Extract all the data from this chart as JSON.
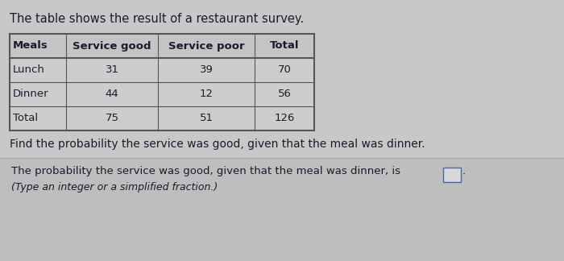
{
  "title": "The table shows the result of a restaurant survey.",
  "title_fontsize": 10.5,
  "col_headers": [
    "Meals",
    "Service good",
    "Service poor",
    "Total"
  ],
  "rows": [
    [
      "Lunch",
      "31",
      "39",
      "70"
    ],
    [
      "Dinner",
      "44",
      "12",
      "56"
    ],
    [
      "Total",
      "75",
      "51",
      "126"
    ]
  ],
  "question": "Find the probability the service was good, given that the meal was dinner.",
  "answer_line1": "The probability the service was good, given that the meal was dinner, is",
  "answer_line2": "(Type an integer or a simplified fraction.)",
  "bg_color": "#c8c8c8",
  "answer_bg": "#bebebe",
  "text_color": "#1a1a2e",
  "font_size": 9.5,
  "answer_font_size": 9.5
}
